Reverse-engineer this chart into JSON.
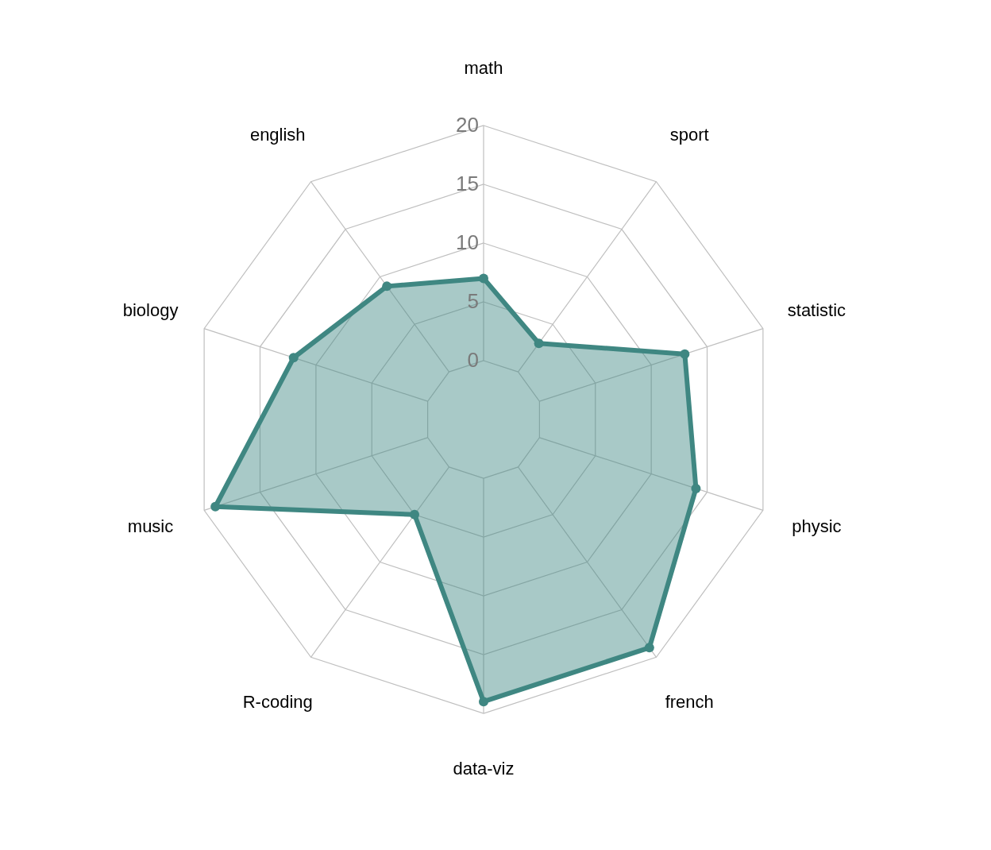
{
  "chart_data": {
    "type": "radar",
    "categories": [
      "math",
      "sport",
      "statistic",
      "physic",
      "french",
      "data-viz",
      "R-coding",
      "music",
      "biology",
      "english"
    ],
    "series": [
      {
        "color": "#3f8782",
        "values": [
          7,
          3,
          13,
          14,
          19,
          19,
          5,
          19,
          12,
          9
        ]
      }
    ],
    "ylim": [
      -5,
      20
    ],
    "yticks": [
      0,
      5,
      10,
      15,
      20
    ],
    "grid": true,
    "marker": "circle",
    "line_style": "solid"
  }
}
